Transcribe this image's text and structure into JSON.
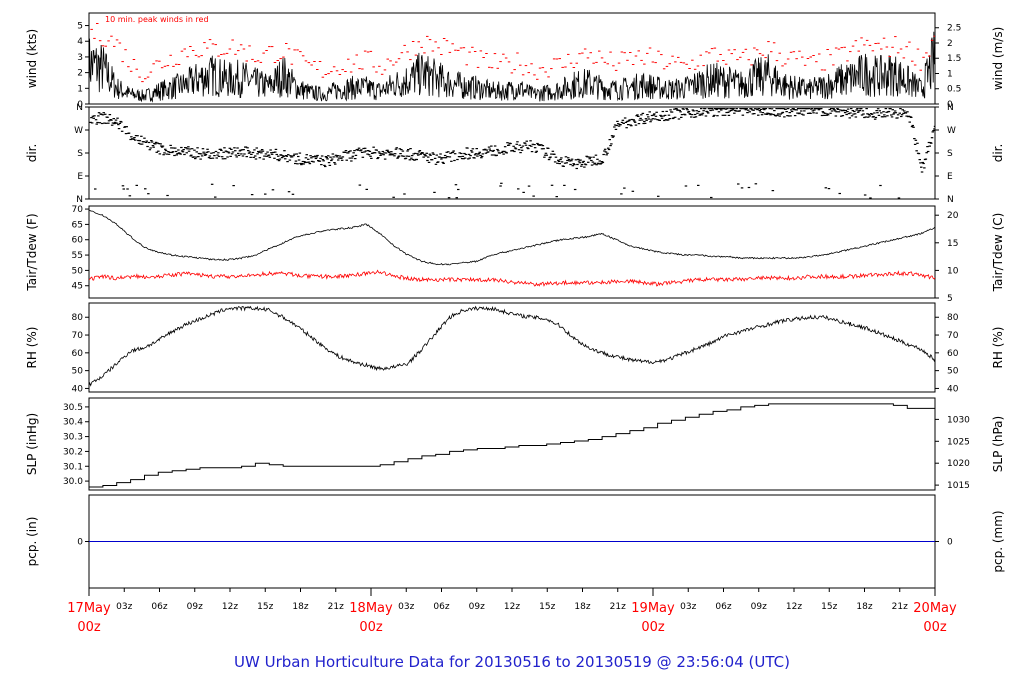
{
  "title": "UW Urban Horticulture Data for 20130516  to  20130519 @ 23:56:04  (UTC)",
  "x_axis": {
    "dates": [
      {
        "label": "17May",
        "sub": "00z"
      },
      {
        "label": "18May",
        "sub": "00z"
      },
      {
        "label": "19May",
        "sub": "00z"
      },
      {
        "label": "20May",
        "sub": "00z"
      }
    ],
    "hour_labels": [
      "03z",
      "06z",
      "09z",
      "12z",
      "15z",
      "18z",
      "21z"
    ]
  },
  "colors": {
    "peak": "#ff0000",
    "dew": "#ff0000",
    "pcp_line": "#0000cc",
    "date": "#ff0000",
    "title": "#2222cc"
  },
  "chart_data": [
    {
      "type": "line",
      "ylabel_left": "wind (kts)",
      "ylabel_right": "wind (m/s)",
      "ylim": [
        0,
        5.8
      ],
      "yticks_left": [
        "0",
        "1",
        "2",
        "3",
        "4",
        "5"
      ],
      "yticks_right": [
        "0",
        "0.5",
        "1",
        "1.5",
        "2",
        "2.5"
      ],
      "annotation": "10 min. peak winds in red",
      "series": [
        {
          "values_kts": [
            2.5,
            2.2,
            1.0,
            0.6,
            0.5,
            0.8,
            1.0,
            1.2,
            1.6,
            1.8,
            1.5,
            1.6,
            1.3,
            1.1,
            1.8,
            1.0,
            0.7,
            0.6,
            0.9,
            1.0,
            1.0,
            0.8,
            1.2,
            1.5,
            1.9,
            1.6,
            1.3,
            1.1,
            1.0,
            0.8,
            0.8,
            1.0,
            0.6,
            0.7,
            0.9,
            1.2,
            1.3,
            1.0,
            0.9,
            1.0,
            1.2,
            1.0,
            0.9,
            1.0,
            1.3,
            1.5,
            1.4,
            1.2,
            1.6,
            1.8,
            1.2,
            1.0,
            0.9,
            1.1,
            1.4,
            1.6,
            1.9,
            1.7,
            1.9,
            1.4,
            0.9,
            2.8
          ]
        },
        {
          "values_kts": [
            4.6,
            4.4,
            3.8,
            2.5,
            2.0,
            2.6,
            3.0,
            3.5,
            3.6,
            3.5,
            3.7,
            3.5,
            3.0,
            3.3,
            3.4,
            2.8,
            2.3,
            2.2,
            2.5,
            2.6,
            2.8,
            2.4,
            3.0,
            3.5,
            4.0,
            3.7,
            3.6,
            3.2,
            2.8,
            2.6,
            2.5,
            2.7,
            2.2,
            2.4,
            2.5,
            3.0,
            3.2,
            2.8,
            2.6,
            2.9,
            3.0,
            2.8,
            2.6,
            2.4,
            2.9,
            3.2,
            3.0,
            2.8,
            3.2,
            3.6,
            3.0,
            2.9,
            2.5,
            2.8,
            3.0,
            3.5,
            3.8,
            3.6,
            3.7,
            3.5,
            2.8,
            4.5
          ]
        }
      ]
    },
    {
      "type": "scatter",
      "ylabel_left": "dir.",
      "ylabel_right": "dir.",
      "ylim": [
        0,
        360
      ],
      "yticks_left": [
        "N",
        "E",
        "S",
        "W",
        "N"
      ],
      "yticks_right": [
        "N",
        "E",
        "S",
        "W",
        "N"
      ],
      "values_deg": [
        315,
        320,
        300,
        250,
        220,
        200,
        190,
        185,
        180,
        180,
        182,
        185,
        180,
        178,
        170,
        160,
        155,
        150,
        165,
        175,
        185,
        180,
        182,
        178,
        170,
        160,
        168,
        180,
        185,
        190,
        200,
        205,
        210,
        180,
        150,
        140,
        150,
        165,
        290,
        310,
        320,
        330,
        335,
        340,
        345,
        348,
        350,
        352,
        350,
        348,
        345,
        350,
        352,
        350,
        345,
        340,
        338,
        335,
        340,
        345,
        120,
        300
      ]
    },
    {
      "type": "line",
      "ylabel_left": "Tair/Tdew (F)",
      "ylabel_right": "Tair/Tdew (C)",
      "ylim": [
        41,
        71
      ],
      "yticks_left": [
        "45",
        "50",
        "55",
        "60",
        "65",
        "70"
      ],
      "yticks_right": [
        "5",
        "10",
        "15",
        "20"
      ],
      "series": [
        {
          "values_F": [
            69.5,
            68,
            65,
            61,
            57.5,
            56,
            55,
            54.5,
            54,
            53.5,
            53.5,
            54,
            55,
            57,
            59,
            61,
            62,
            63,
            63.5,
            64,
            65,
            62,
            58,
            55,
            53,
            52,
            52,
            52.5,
            53,
            55,
            56,
            57,
            58,
            59,
            60,
            60.5,
            61,
            62,
            60,
            58,
            57,
            56,
            55.5,
            55,
            55,
            54.5,
            54.5,
            54,
            54,
            54,
            54,
            54,
            54.5,
            55,
            56,
            57,
            58,
            59,
            60,
            61,
            62,
            64
          ]
        },
        {
          "values_F": [
            47,
            48,
            47.5,
            48,
            48,
            48,
            48.5,
            49,
            48.5,
            48,
            48,
            48,
            48.5,
            49,
            49,
            48.5,
            48,
            48,
            48,
            48.5,
            49,
            49.5,
            48,
            47.5,
            47,
            47,
            47,
            47,
            47,
            47,
            46.5,
            46,
            45.5,
            45.5,
            46,
            46,
            46,
            46,
            46.5,
            46.5,
            46,
            45.5,
            46,
            46.5,
            47,
            47,
            47,
            47,
            47.5,
            47.5,
            47.5,
            47.5,
            48,
            48,
            48,
            48,
            48.5,
            48.5,
            49,
            49,
            48.5,
            47.5
          ]
        }
      ]
    },
    {
      "type": "line",
      "ylabel_left": "RH (%)",
      "ylabel_right": "RH (%)",
      "ylim": [
        38,
        88
      ],
      "yticks_left": [
        "40",
        "50",
        "60",
        "70",
        "80"
      ],
      "yticks_right": [
        "40",
        "50",
        "60",
        "70",
        "80"
      ],
      "series": [
        {
          "values": [
            42,
            47,
            54,
            61,
            63,
            67,
            72,
            76,
            79,
            82,
            85,
            85,
            85,
            84,
            80,
            75,
            69,
            63,
            58,
            55,
            53,
            51,
            52,
            54,
            62,
            71,
            80,
            84,
            85,
            85,
            83,
            81,
            80,
            79,
            75,
            68,
            63,
            60,
            58,
            56,
            55,
            55,
            57,
            60,
            63,
            66,
            70,
            72,
            74,
            76,
            78,
            79,
            80,
            80,
            78,
            76,
            74,
            71,
            68,
            65,
            62,
            56
          ]
        }
      ]
    },
    {
      "type": "line",
      "ylabel_left": "SLP (inHg)",
      "ylabel_right": "SLP (hPa)",
      "ylim": [
        29.94,
        30.56
      ],
      "yticks_left": [
        "30.0",
        "30.1",
        "30.2",
        "30.3",
        "30.4",
        "30.5"
      ],
      "yticks_right": [
        "1015",
        "1020",
        "1025",
        "1030"
      ],
      "series": [
        {
          "values_inHg": [
            29.96,
            29.96,
            29.97,
            29.99,
            30.01,
            30.04,
            30.06,
            30.07,
            30.08,
            30.09,
            30.09,
            30.09,
            30.1,
            30.12,
            30.11,
            30.1,
            30.1,
            30.1,
            30.1,
            30.1,
            30.1,
            30.1,
            30.11,
            30.13,
            30.15,
            30.17,
            30.18,
            30.2,
            30.21,
            30.22,
            30.22,
            30.23,
            30.24,
            30.24,
            30.25,
            30.26,
            30.27,
            30.28,
            30.3,
            30.32,
            30.34,
            30.36,
            30.39,
            30.41,
            30.43,
            30.45,
            30.47,
            30.48,
            30.5,
            30.51,
            30.52,
            30.52,
            30.52,
            30.52,
            30.52,
            30.52,
            30.52,
            30.52,
            30.52,
            30.51,
            30.49,
            30.49
          ]
        }
      ]
    },
    {
      "type": "line",
      "ylabel_left": "pcp. (in)",
      "ylabel_right": "pcp. (mm)",
      "ylim": [
        -1,
        1
      ],
      "yticks_left": [
        "0"
      ],
      "yticks_right": [
        "0"
      ],
      "series": [
        {
          "values": [
            0,
            0
          ]
        }
      ]
    }
  ]
}
